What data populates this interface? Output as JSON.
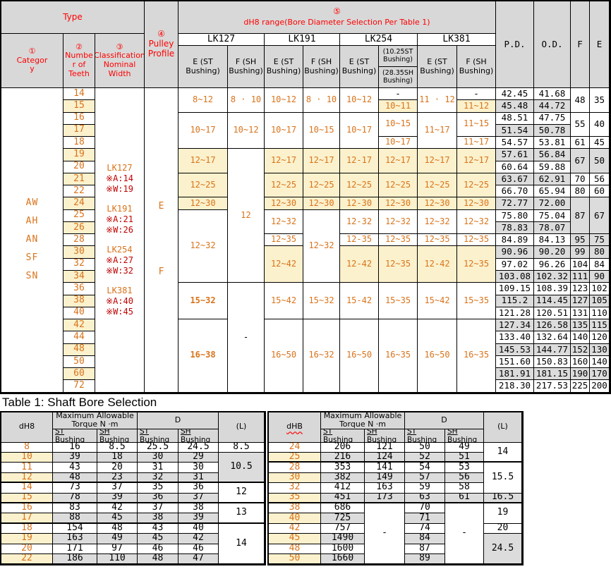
{
  "top_table": {
    "header": {
      "type_label": "Type",
      "category_label": "①\nCategor\ny",
      "teeth_label": "②\nNumbe\nr of\nTeeth",
      "classification_label": "③\nClassification\nNominal Width",
      "profile_label": "④\nPulley\nProfile",
      "selection_num": "⑤",
      "selection_label": "dH8 range(Bore Diameter Selection Per Table 1)",
      "groups": [
        "LK127",
        "LK191",
        "LK254",
        "LK381"
      ],
      "e_st_label": "E (ST\nBushing)",
      "f_sh_label": "F (SH\nBushing)",
      "lk254_st_label": "(10.25ST\nBushing)",
      "lk254_sh_label": "(28.35SH\nBushing)",
      "pd_label": "P.D.",
      "od_label": "O.D.",
      "f_label": "F",
      "e_label": "E"
    },
    "category_lines": [
      "AW",
      "AH",
      "AN",
      "SF",
      "SN"
    ],
    "classification_groups": [
      [
        "LK127",
        "※A:14",
        "※W:19"
      ],
      [
        "LK191",
        "※A:21",
        "※W:26"
      ],
      [
        "LK254",
        "※A:27",
        "※W:32"
      ],
      [
        "LK381",
        "※A:40",
        "※W:45"
      ]
    ],
    "profile_lines": [
      "E",
      "F"
    ],
    "teeth": [
      "14",
      "15",
      "16",
      "17",
      "18",
      "19",
      "20",
      "21",
      "22",
      "24",
      "25",
      "26",
      "28",
      "30",
      "32",
      "34",
      "36",
      "38",
      "40",
      "42",
      "44",
      "48",
      "50",
      "60",
      "72"
    ],
    "pd": [
      "42.45",
      "45.48",
      "48.51",
      "51.54",
      "54.57",
      "57.61",
      "60.64",
      "63.67",
      "66.70",
      "72.77",
      "75.80",
      "78.83",
      "84.89",
      "90.96",
      "97.02",
      "103.08",
      "109.15",
      "115.2",
      "121.28",
      "127.34",
      "133.40",
      "145.53",
      "151.60",
      "181.91",
      "218.30"
    ],
    "od": [
      "41.68",
      "44.72",
      "47.75",
      "50.78",
      "53.81",
      "56.84",
      "59.88",
      "62.91",
      "65.94",
      "72.00",
      "75.04",
      "78.07",
      "84.13",
      "90.20",
      "96.26",
      "102.32",
      "108.39",
      "114.45",
      "120.51",
      "126.58",
      "132.64",
      "144.77",
      "150.83",
      "181.15",
      "217.53"
    ],
    "fe": [
      {
        "r": 0,
        "rs": 2,
        "f": "48",
        "e": "35",
        "shaded": false
      },
      {
        "r": 2,
        "rs": 2,
        "f": "55",
        "e": "40",
        "shaded": false
      },
      {
        "r": 4,
        "rs": 1,
        "f": "61",
        "e": "45",
        "shaded": false
      },
      {
        "r": 5,
        "rs": 2,
        "f": "67",
        "e": "50",
        "shaded": true
      },
      {
        "r": 7,
        "rs": 1,
        "f": "70",
        "e": "56",
        "shaded": false
      },
      {
        "r": 8,
        "rs": 1,
        "f": "80",
        "e": "60",
        "shaded": false
      },
      {
        "r": 9,
        "rs": 3,
        "f": "87",
        "e": "67",
        "shaded": true
      },
      {
        "r": 12,
        "rs": 1,
        "f": "95",
        "e": "75",
        "shaded": true
      },
      {
        "r": 13,
        "rs": 1,
        "f": "99",
        "e": "80",
        "shaded": true
      },
      {
        "r": 14,
        "rs": 1,
        "f": "104",
        "e": "84",
        "shaded": false
      },
      {
        "r": 15,
        "rs": 1,
        "f": "111",
        "e": "90",
        "shaded": true
      },
      {
        "r": 16,
        "rs": 1,
        "f": "123",
        "e": "102",
        "shaded": false
      },
      {
        "r": 17,
        "rs": 1,
        "f": "127",
        "e": "105",
        "shaded": true
      },
      {
        "r": 18,
        "rs": 1,
        "f": "131",
        "e": "110",
        "shaded": false
      },
      {
        "r": 19,
        "rs": 1,
        "f": "135",
        "e": "115",
        "shaded": true
      },
      {
        "r": 20,
        "rs": 1,
        "f": "140",
        "e": "120",
        "shaded": false
      },
      {
        "r": 21,
        "rs": 1,
        "f": "152",
        "e": "130",
        "shaded": true
      },
      {
        "r": 22,
        "rs": 1,
        "f": "160",
        "e": "140",
        "shaded": false
      },
      {
        "r": 23,
        "rs": 1,
        "f": "190",
        "e": "170",
        "shaded": true
      },
      {
        "r": 24,
        "rs": 1,
        "f": "225",
        "e": "200",
        "shaded": false
      }
    ],
    "bushings": {
      "lk127_e": [
        {
          "r": 0,
          "rs": 2,
          "t": "8~12"
        },
        {
          "r": 2,
          "rs": 3,
          "t": "10~17"
        },
        {
          "r": 5,
          "rs": 2,
          "t": "12~17",
          "cream": true
        },
        {
          "r": 7,
          "rs": 2,
          "t": "12~25",
          "cream": true
        },
        {
          "r": 9,
          "rs": 1,
          "t": "12~30",
          "cream": true
        },
        {
          "r": 10,
          "rs": 6,
          "t": "12~32"
        },
        {
          "r": 16,
          "rs": 3,
          "t": "15~32",
          "bold": true
        },
        {
          "r": 19,
          "rs": 6,
          "t": "16~38",
          "bold": true
        }
      ],
      "lk127_f": [
        {
          "r": 0,
          "rs": 2,
          "t": "8 · 10"
        },
        {
          "r": 2,
          "rs": 3,
          "t": "10~12"
        },
        {
          "r": 5,
          "rs": 11,
          "t": "12"
        },
        {
          "r": 16,
          "rs": 9,
          "t": "-",
          "dash": true
        }
      ],
      "lk191_e": [
        {
          "r": 0,
          "rs": 2,
          "t": "10~12"
        },
        {
          "r": 2,
          "rs": 3,
          "t": "10~17"
        },
        {
          "r": 5,
          "rs": 2,
          "t": "12~17",
          "cream": true
        },
        {
          "r": 7,
          "rs": 2,
          "t": "12~25",
          "cream": true
        },
        {
          "r": 9,
          "rs": 1,
          "t": "12~30",
          "cream": true
        },
        {
          "r": 10,
          "rs": 2,
          "t": "12~32"
        },
        {
          "r": 12,
          "rs": 1,
          "t": "12~35"
        },
        {
          "r": 13,
          "rs": 3,
          "t": "12~42",
          "cream": true
        },
        {
          "r": 16,
          "rs": 3,
          "t": "15~42"
        },
        {
          "r": 19,
          "rs": 6,
          "t": "16~50"
        }
      ],
      "lk191_f": [
        {
          "r": 0,
          "rs": 2,
          "t": "8 · 10"
        },
        {
          "r": 2,
          "rs": 3,
          "t": "10~15"
        },
        {
          "r": 5,
          "rs": 2,
          "t": "12~17",
          "cream": true
        },
        {
          "r": 7,
          "rs": 2,
          "t": "12~25",
          "cream": true
        },
        {
          "r": 9,
          "rs": 1,
          "t": "12~30",
          "cream": true
        },
        {
          "r": 10,
          "rs": 6,
          "t": "12~32"
        },
        {
          "r": 16,
          "rs": 3,
          "t": "15~32"
        },
        {
          "r": 19,
          "rs": 6,
          "t": "16~32"
        }
      ],
      "lk254_e": [
        {
          "r": 0,
          "rs": 2,
          "t": "10~12"
        },
        {
          "r": 2,
          "rs": 3,
          "t": "10~17"
        },
        {
          "r": 5,
          "rs": 2,
          "t": "12-17",
          "cream": true
        },
        {
          "r": 7,
          "rs": 2,
          "t": "12~25",
          "cream": true
        },
        {
          "r": 9,
          "rs": 1,
          "t": "12-30",
          "cream": true
        },
        {
          "r": 10,
          "rs": 2,
          "t": "12-32"
        },
        {
          "r": 12,
          "rs": 1,
          "t": "12-35"
        },
        {
          "r": 13,
          "rs": 3,
          "t": "12-42",
          "cream": true
        },
        {
          "r": 16,
          "rs": 3,
          "t": "15-42"
        },
        {
          "r": 19,
          "rs": 6,
          "t": "16~50"
        }
      ],
      "lk254_s": [
        {
          "r": 0,
          "rs": 1,
          "t": "-",
          "dash": true
        },
        {
          "r": 1,
          "rs": 1,
          "t": "10~11",
          "cream": true
        },
        {
          "r": 2,
          "rs": 2,
          "t": "10~15"
        },
        {
          "r": 4,
          "rs": 1,
          "t": "10~17"
        },
        {
          "r": 5,
          "rs": 2,
          "t": "12~17",
          "cream": true
        },
        {
          "r": 7,
          "rs": 2,
          "t": "12~25",
          "cream": true
        },
        {
          "r": 9,
          "rs": 1,
          "t": "12~30",
          "cream": true
        },
        {
          "r": 10,
          "rs": 2,
          "t": "12~32"
        },
        {
          "r": 12,
          "rs": 1,
          "t": "12~35"
        },
        {
          "r": 13,
          "rs": 3,
          "t": "12~35",
          "cream": true
        },
        {
          "r": 16,
          "rs": 3,
          "t": "15~35"
        },
        {
          "r": 19,
          "rs": 6,
          "t": "16~35"
        }
      ],
      "lk381_e": [
        {
          "r": 0,
          "rs": 2,
          "t": "11 · 12"
        },
        {
          "r": 2,
          "rs": 3,
          "t": "11~17"
        },
        {
          "r": 5,
          "rs": 2,
          "t": "12~17",
          "cream": true
        },
        {
          "r": 7,
          "rs": 2,
          "t": "12~25",
          "cream": true
        },
        {
          "r": 9,
          "rs": 1,
          "t": "12~30",
          "cream": true
        },
        {
          "r": 10,
          "rs": 2,
          "t": "12~32"
        },
        {
          "r": 12,
          "rs": 1,
          "t": "12~35"
        },
        {
          "r": 13,
          "rs": 3,
          "t": "12-42",
          "cream": true
        },
        {
          "r": 16,
          "rs": 3,
          "t": "15~42"
        },
        {
          "r": 19,
          "rs": 6,
          "t": "16~50"
        }
      ],
      "lk381_f": [
        {
          "r": 0,
          "rs": 1,
          "t": "-",
          "dash": true
        },
        {
          "r": 1,
          "rs": 1,
          "t": "11~12",
          "cream": true
        },
        {
          "r": 2,
          "rs": 2,
          "t": "11~15"
        },
        {
          "r": 4,
          "rs": 1,
          "t": "11~17"
        },
        {
          "r": 5,
          "rs": 2,
          "t": "12~17",
          "cream": true
        },
        {
          "r": 7,
          "rs": 2,
          "t": "12~25",
          "cream": true
        },
        {
          "r": 9,
          "rs": 1,
          "t": "12~30",
          "cream": true
        },
        {
          "r": 10,
          "rs": 2,
          "t": "12~32"
        },
        {
          "r": 12,
          "rs": 1,
          "t": "12~35"
        },
        {
          "r": 13,
          "rs": 3,
          "t": "12~35",
          "cream": true
        },
        {
          "r": 16,
          "rs": 3,
          "t": "15~35"
        },
        {
          "r": 19,
          "rs": 6,
          "t": "16~35"
        }
      ]
    }
  },
  "table1": {
    "title": "Table 1: Shaft Bore Selection",
    "left": {
      "dh8_label": "dH8",
      "torque_label": "Maximum Allowable\nTorque N ·m",
      "d_label": "D",
      "l_label": "(L)",
      "st_label": "ST\nBushing",
      "sh_label": "SH\nBushing",
      "rows": [
        {
          "d": "8",
          "t_st": "16",
          "t_sh": "8.5",
          "d_st": "25.5",
          "d_sh": "24.5"
        },
        {
          "d": "10",
          "t_st": "39",
          "t_sh": "18",
          "d_st": "30",
          "d_sh": "29"
        },
        {
          "d": "11",
          "t_st": "43",
          "t_sh": "20",
          "d_st": "31",
          "d_sh": "30"
        },
        {
          "d": "12",
          "t_st": "48",
          "t_sh": "23",
          "d_st": "32",
          "d_sh": "31"
        },
        {
          "d": "14",
          "t_st": "73",
          "t_sh": "37",
          "d_st": "35",
          "d_sh": "36"
        },
        {
          "d": "15",
          "t_st": "78",
          "t_sh": "39",
          "d_st": "36",
          "d_sh": "37"
        },
        {
          "d": "16",
          "t_st": "83",
          "t_sh": "42",
          "d_st": "37",
          "d_sh": "38"
        },
        {
          "d": "17",
          "t_st": "88",
          "t_sh": "45",
          "d_st": "38",
          "d_sh": "39"
        },
        {
          "d": "18",
          "t_st": "154",
          "t_sh": "48",
          "d_st": "43",
          "d_sh": "40"
        },
        {
          "d": "19",
          "t_st": "163",
          "t_sh": "49",
          "d_st": "45",
          "d_sh": "42"
        },
        {
          "d": "20",
          "t_st": "171",
          "t_sh": "97",
          "d_st": "46",
          "d_sh": "46"
        },
        {
          "d": "22",
          "t_st": "186",
          "t_sh": "110",
          "d_st": "48",
          "d_sh": "47"
        }
      ],
      "l_groups": [
        {
          "r": 0,
          "rs": 1,
          "t": "8.5",
          "shaded": false
        },
        {
          "r": 1,
          "rs": 3,
          "t": "10.5",
          "shaded": true
        },
        {
          "r": 4,
          "rs": 2,
          "t": "12",
          "shaded": false
        },
        {
          "r": 6,
          "rs": 2,
          "t": "13",
          "shaded": false
        },
        {
          "r": 8,
          "rs": 4,
          "t": "14",
          "shaded": false
        }
      ],
      "thick_after": [
        3,
        5,
        7
      ]
    },
    "right": {
      "dh8_label": "dHB",
      "torque_label": "Maximum Allowable\nTorque N ·m",
      "d_label": "D",
      "l_label": "(L)",
      "st_label": "ST\nBushing",
      "sh_label": "SH\nBushing",
      "sh_dash": "-",
      "rows": [
        {
          "d": "24",
          "t_st": "206",
          "t_sh": "121",
          "d_st": "50",
          "d_sh": "49"
        },
        {
          "d": "25",
          "t_st": "216",
          "t_sh": "124",
          "d_st": "52",
          "d_sh": "51"
        },
        {
          "d": "28",
          "t_st": "353",
          "t_sh": "141",
          "d_st": "54",
          "d_sh": "53"
        },
        {
          "d": "30",
          "t_st": "382",
          "t_sh": "149",
          "d_st": "57",
          "d_sh": "56"
        },
        {
          "d": "32",
          "t_st": "412",
          "t_sh": "163",
          "d_st": "59",
          "d_sh": "58"
        },
        {
          "d": "35",
          "t_st": "451",
          "t_sh": "173",
          "d_st": "63",
          "d_sh": "61"
        },
        {
          "d": "38",
          "t_st": "686",
          "t_sh": null,
          "d_st": "70",
          "d_sh": null
        },
        {
          "d": "40",
          "t_st": "725",
          "t_sh": null,
          "d_st": "71",
          "d_sh": null
        },
        {
          "d": "42",
          "t_st": "757",
          "t_sh": null,
          "d_st": "74",
          "d_sh": null
        },
        {
          "d": "45",
          "t_st": "1490",
          "t_sh": null,
          "d_st": "84",
          "d_sh": null
        },
        {
          "d": "48",
          "t_st": "1600",
          "t_sh": null,
          "d_st": "87",
          "d_sh": null
        },
        {
          "d": "50",
          "t_st": "1660",
          "t_sh": null,
          "d_st": "89",
          "d_sh": null
        }
      ],
      "l_groups": [
        {
          "r": 0,
          "rs": 2,
          "t": "14",
          "shaded": false
        },
        {
          "r": 2,
          "rs": 3,
          "t": "15.5",
          "shaded": false
        },
        {
          "r": 5,
          "rs": 1,
          "t": "16.5",
          "shaded": true
        },
        {
          "r": 6,
          "rs": 2,
          "t": "19",
          "shaded": false
        },
        {
          "r": 8,
          "rs": 1,
          "t": "20",
          "shaded": false
        },
        {
          "r": 9,
          "rs": 3,
          "t": "24.5",
          "shaded": true
        }
      ],
      "merged_dash": {
        "r": 6,
        "rs": 6
      },
      "thick_after": [
        1,
        5
      ]
    }
  }
}
